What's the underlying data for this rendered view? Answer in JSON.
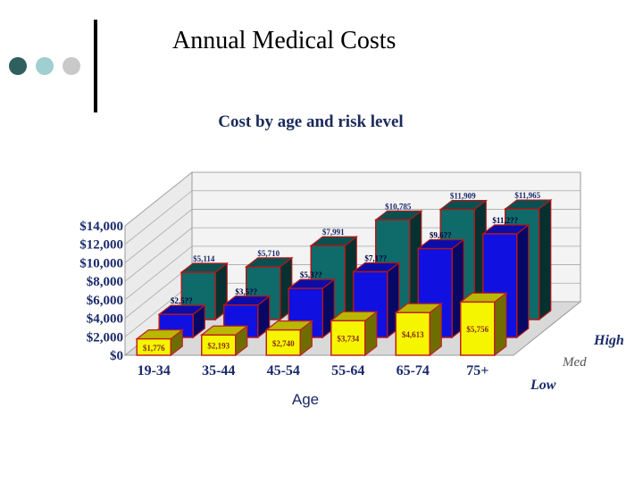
{
  "slide": {
    "title": "Annual Medical Costs",
    "dot_colors": [
      "#2f5f5f",
      "#9fcfd0",
      "#c9c9c9"
    ]
  },
  "chart_data": {
    "type": "bar",
    "title": "Cost by age and risk level",
    "xlabel": "Age",
    "ylabel": "",
    "categories": [
      "19-34",
      "35-44",
      "45-54",
      "55-64",
      "65-74",
      "75+"
    ],
    "yticks": [
      "$0",
      "$2,000",
      "$4,000",
      "$6,000",
      "$8,000",
      "$10,000",
      "$12,000",
      "$14,000"
    ],
    "ylim": [
      0,
      14000
    ],
    "series": [
      {
        "name": "Low",
        "color": "#f5f500",
        "values": [
          1776,
          2193,
          2740,
          3734,
          4613,
          5756
        ],
        "labels": [
          "$1,776",
          "$2,193",
          "$2,740",
          "$3,734",
          "$4,613",
          "$5,756"
        ]
      },
      {
        "name": "Med",
        "color": "#1010e0",
        "values": [
          2500,
          3500,
          5300,
          7100,
          9600,
          11200
        ],
        "labels": [
          "$2,5??",
          "$3,5??",
          "$5,3??",
          "$7,1??",
          "$9,6??",
          "$11,2??"
        ]
      },
      {
        "name": "High",
        "color": "#0f6a6a",
        "values": [
          5114,
          5710,
          7991,
          10785,
          11909,
          11965
        ],
        "labels": [
          "$5,114",
          "$5,710",
          "$7,991",
          "$10,785",
          "$11,909",
          "$11,965"
        ]
      }
    ]
  }
}
